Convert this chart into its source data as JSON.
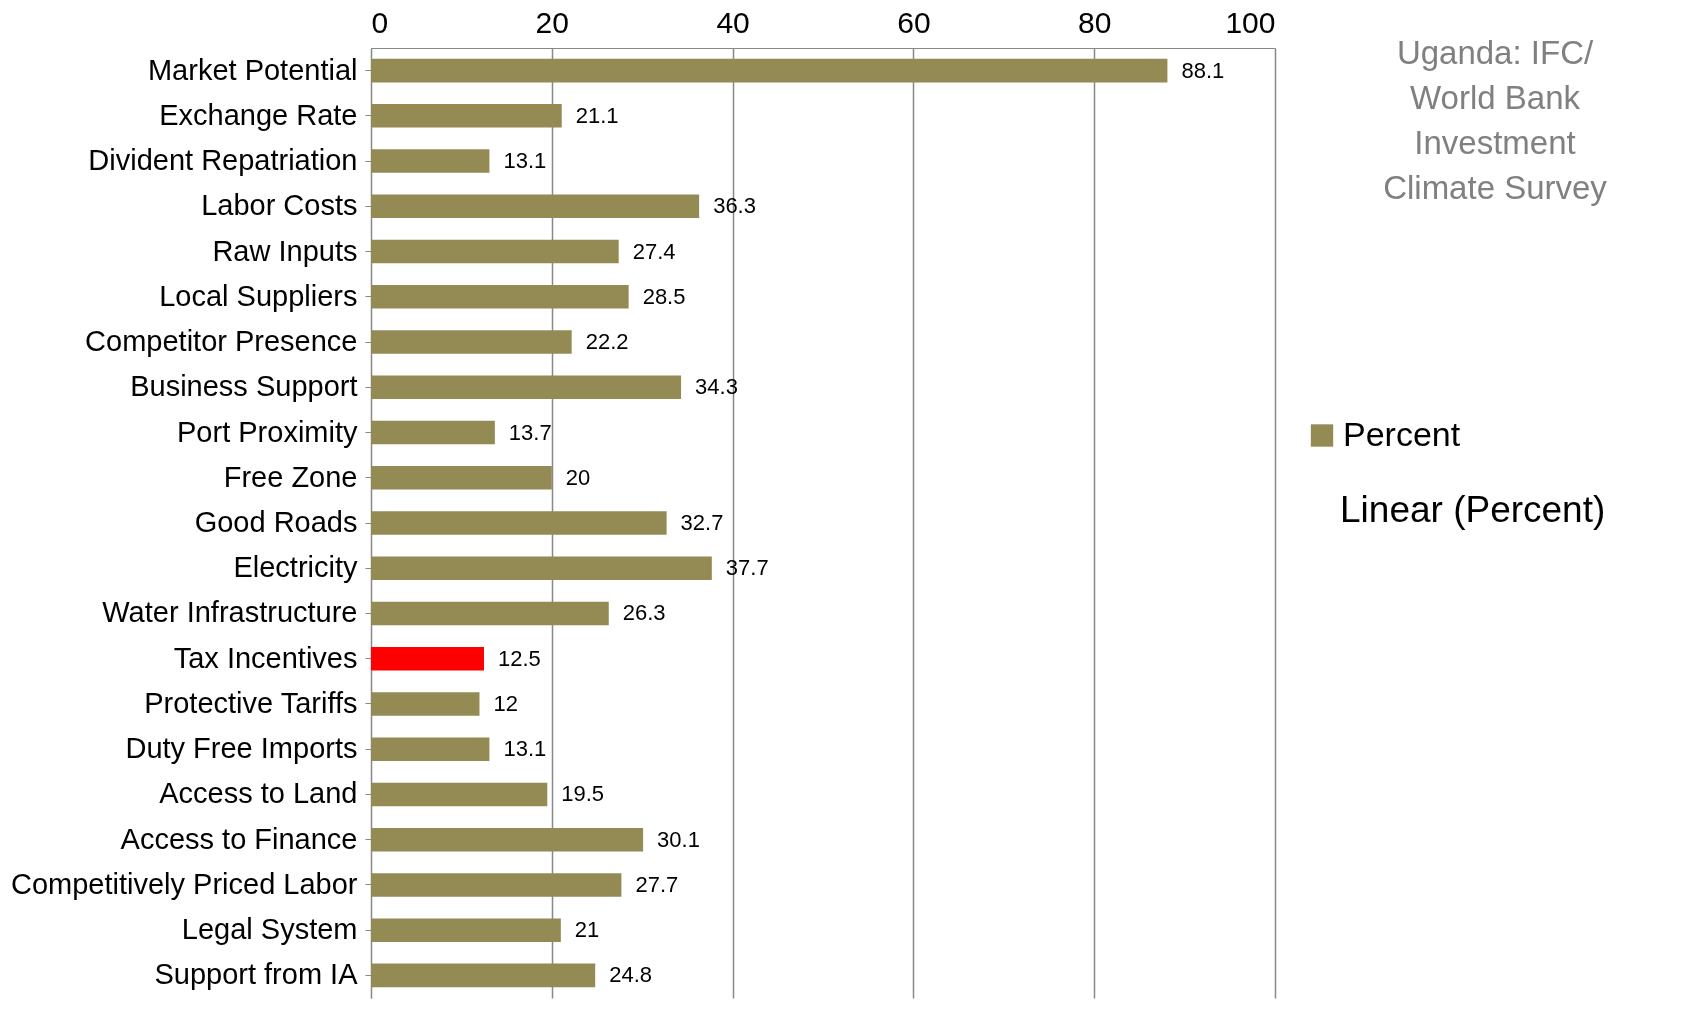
{
  "chart_data": {
    "type": "bar",
    "orientation": "horizontal",
    "title": "Uganda: IFC/ World Bank Investment Climate Survey",
    "categories": [
      "Market Potential",
      "Exchange Rate",
      "Divident Repatriation",
      "Labor Costs",
      "Raw Inputs",
      "Local Suppliers",
      "Competitor Presence",
      "Business Support",
      "Port Proximity",
      "Free Zone",
      "Good Roads",
      "Electricity",
      "Water Infrastructure",
      "Tax Incentives",
      "Protective Tariffs",
      "Duty Free Imports",
      "Access to Land",
      "Access to Finance",
      "Competitively Priced Labor",
      "Legal System",
      "Support from IA"
    ],
    "series": [
      {
        "name": "Percent",
        "colors": [
          "#948a54",
          "#948a54",
          "#948a54",
          "#948a54",
          "#948a54",
          "#948a54",
          "#948a54",
          "#948a54",
          "#948a54",
          "#948a54",
          "#948a54",
          "#948a54",
          "#948a54",
          "#ff0000",
          "#948a54",
          "#948a54",
          "#948a54",
          "#948a54",
          "#948a54",
          "#948a54",
          "#948a54"
        ],
        "values": [
          88.1,
          21.1,
          13.1,
          36.3,
          27.4,
          28.5,
          22.2,
          34.3,
          13.7,
          20,
          32.7,
          37.7,
          26.3,
          12.5,
          12,
          13.1,
          19.5,
          30.1,
          27.7,
          21,
          24.8
        ]
      }
    ],
    "xlim": [
      0,
      100
    ],
    "xticks": [
      0,
      20,
      40,
      60,
      80,
      100
    ],
    "grid": "x",
    "legend": "right",
    "data_labels": true,
    "annotations": [
      "Linear (Percent)"
    ]
  }
}
